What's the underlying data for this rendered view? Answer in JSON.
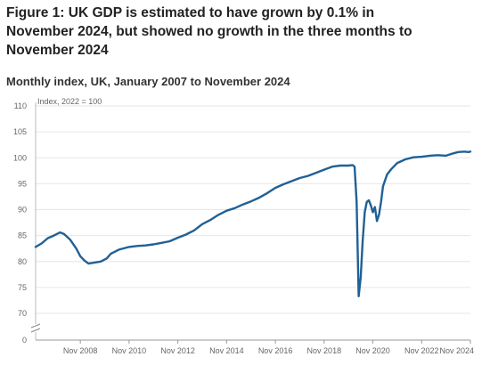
{
  "figure": {
    "title": "Figure 1: UK GDP is estimated to have grown by 0.1% in November 2024, but showed no growth in the three months to November 2024",
    "subtitle": "Monthly index, UK, January 2007 to November 2024"
  },
  "chart_data": {
    "type": "line",
    "unit_label": "Index, 2022 = 100",
    "y_ticks": [
      "110",
      "105",
      "100",
      "95",
      "90",
      "85",
      "80",
      "75",
      "70",
      "0"
    ],
    "y_tick_values": [
      110,
      105,
      100,
      95,
      90,
      85,
      80,
      75,
      70,
      0
    ],
    "y_axis_break": true,
    "ylim": [
      70,
      110
    ],
    "x_ticks": [
      "Nov 2008",
      "Nov 2010",
      "Nov 2012",
      "Nov 2014",
      "Nov 2016",
      "Nov 2018",
      "Nov 2020",
      "Nov 2022",
      "Nov 2024"
    ],
    "x_range": [
      "Jan 2007",
      "Nov 2024"
    ],
    "grid": "horizontal",
    "line_color": "#206095",
    "series": [
      {
        "name": "",
        "points": [
          [
            "2007-01",
            82.8
          ],
          [
            "2007-04",
            83.5
          ],
          [
            "2007-07",
            84.5
          ],
          [
            "2007-10",
            85.0
          ],
          [
            "2008-01",
            85.6
          ],
          [
            "2008-03",
            85.3
          ],
          [
            "2008-06",
            84.2
          ],
          [
            "2008-09",
            82.5
          ],
          [
            "2008-11",
            81.0
          ],
          [
            "2009-01",
            80.2
          ],
          [
            "2009-03",
            79.6
          ],
          [
            "2009-06",
            79.8
          ],
          [
            "2009-09",
            80.0
          ],
          [
            "2009-12",
            80.6
          ],
          [
            "2010-02",
            81.5
          ],
          [
            "2010-06",
            82.3
          ],
          [
            "2010-11",
            82.8
          ],
          [
            "2011-03",
            83.0
          ],
          [
            "2011-07",
            83.1
          ],
          [
            "2011-11",
            83.3
          ],
          [
            "2012-03",
            83.6
          ],
          [
            "2012-07",
            83.9
          ],
          [
            "2012-11",
            84.6
          ],
          [
            "2013-03",
            85.2
          ],
          [
            "2013-07",
            86.0
          ],
          [
            "2013-11",
            87.2
          ],
          [
            "2014-03",
            88.0
          ],
          [
            "2014-07",
            89.0
          ],
          [
            "2014-11",
            89.8
          ],
          [
            "2015-03",
            90.3
          ],
          [
            "2015-07",
            91.0
          ],
          [
            "2015-11",
            91.6
          ],
          [
            "2016-03",
            92.3
          ],
          [
            "2016-07",
            93.2
          ],
          [
            "2016-11",
            94.2
          ],
          [
            "2017-03",
            94.9
          ],
          [
            "2017-07",
            95.5
          ],
          [
            "2017-11",
            96.1
          ],
          [
            "2018-03",
            96.5
          ],
          [
            "2018-07",
            97.1
          ],
          [
            "2018-11",
            97.7
          ],
          [
            "2019-03",
            98.3
          ],
          [
            "2019-07",
            98.5
          ],
          [
            "2019-11",
            98.5
          ],
          [
            "2020-01",
            98.6
          ],
          [
            "2020-02",
            98.3
          ],
          [
            "2020-03",
            91.5
          ],
          [
            "2020-04",
            73.3
          ],
          [
            "2020-05",
            77.0
          ],
          [
            "2020-06",
            84.0
          ],
          [
            "2020-07",
            89.5
          ],
          [
            "2020-08",
            91.5
          ],
          [
            "2020-09",
            91.8
          ],
          [
            "2020-10",
            90.8
          ],
          [
            "2020-11",
            89.5
          ],
          [
            "2020-12",
            90.5
          ],
          [
            "2021-01",
            87.8
          ],
          [
            "2021-02",
            89.0
          ],
          [
            "2021-03",
            91.5
          ],
          [
            "2021-04",
            94.5
          ],
          [
            "2021-06",
            96.8
          ],
          [
            "2021-08",
            97.8
          ],
          [
            "2021-11",
            99.0
          ],
          [
            "2022-03",
            99.7
          ],
          [
            "2022-07",
            100.1
          ],
          [
            "2022-11",
            100.2
          ],
          [
            "2023-03",
            100.4
          ],
          [
            "2023-07",
            100.5
          ],
          [
            "2023-11",
            100.4
          ],
          [
            "2024-02",
            100.8
          ],
          [
            "2024-05",
            101.1
          ],
          [
            "2024-08",
            101.2
          ],
          [
            "2024-10",
            101.1
          ],
          [
            "2024-11",
            101.2
          ]
        ]
      }
    ]
  }
}
